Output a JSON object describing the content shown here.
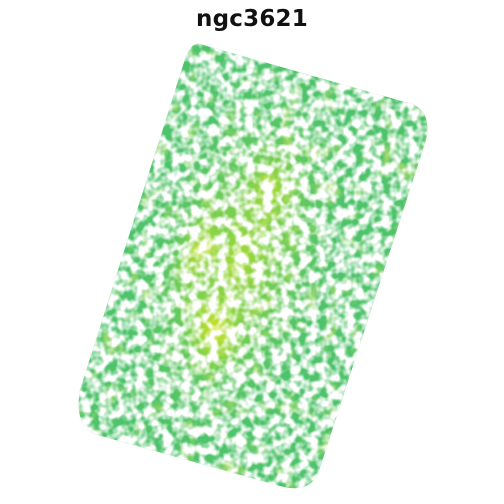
{
  "figure": {
    "title": "ngc3621",
    "colormap": {
      "name": "viridis",
      "stops": [
        "#35b779",
        "#3dbc74",
        "#52c569",
        "#6ece58",
        "#90d743",
        "#b5de2b",
        "#d2e21b",
        "#fde725"
      ]
    },
    "background_color": "#ffffff"
  }
}
